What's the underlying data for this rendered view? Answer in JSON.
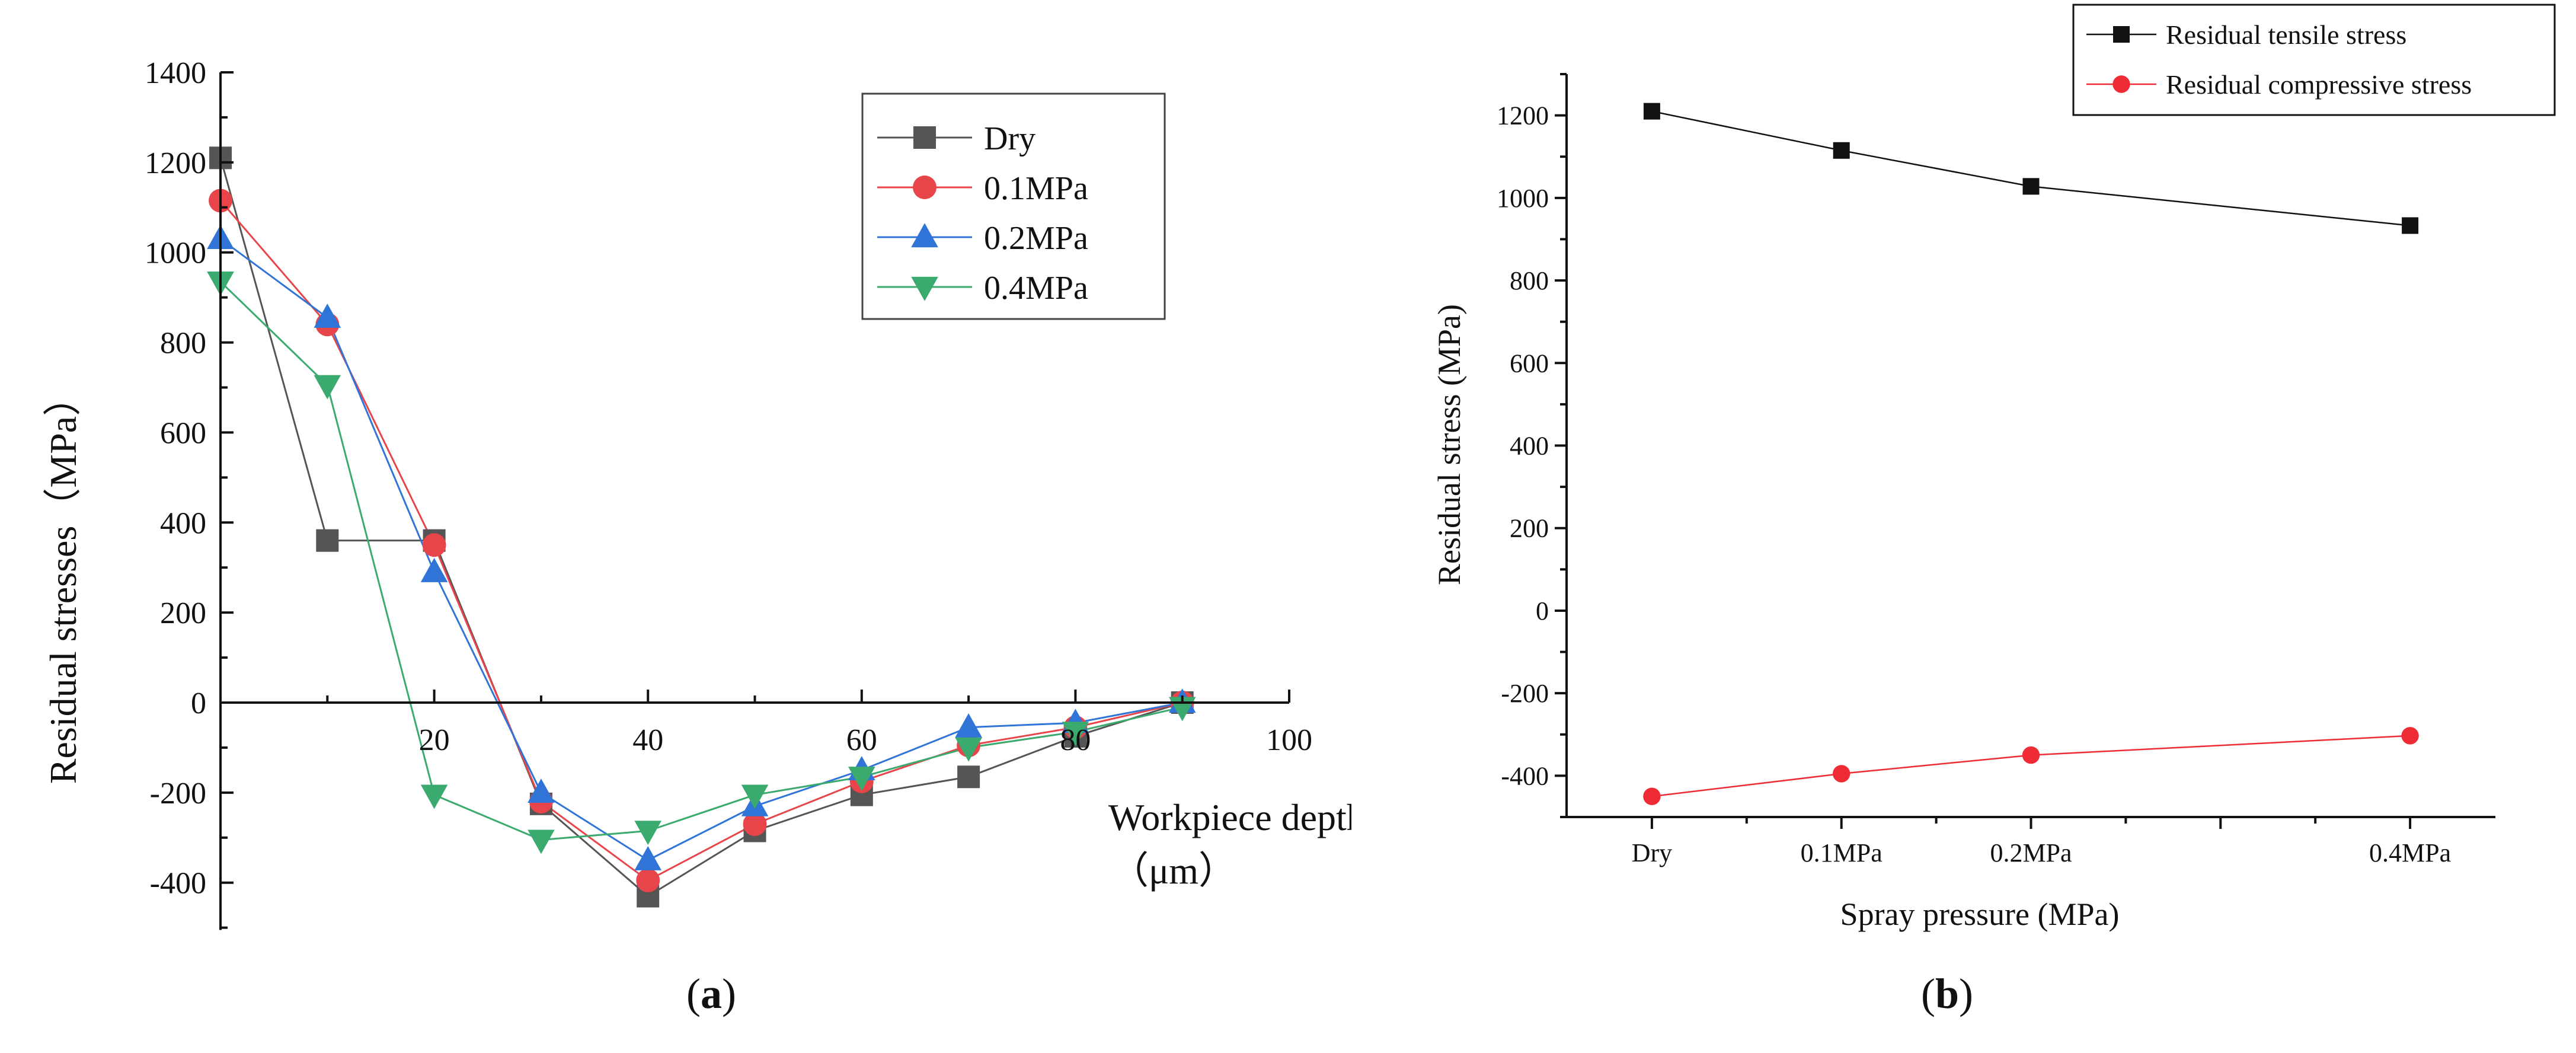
{
  "chart_data": [
    {
      "type": "line",
      "panel_label": "a",
      "xlabel": "Workpiece depth",
      "xunit": "（μm）",
      "ylabel": "Residual stresses（MPa）",
      "xlim": [
        0,
        100
      ],
      "ylim": [
        -500,
        1400
      ],
      "xticks": [
        20,
        40,
        60,
        80,
        100
      ],
      "yticks": [
        1400,
        1200,
        1000,
        800,
        600,
        400,
        200,
        0,
        -200,
        -400
      ],
      "x": [
        0,
        10,
        20,
        30,
        40,
        50,
        60,
        70,
        80,
        90
      ],
      "legend_position": "top-right",
      "series": [
        {
          "name": "Dry",
          "color": "#555555",
          "marker": "square",
          "values": [
            1210,
            360,
            360,
            -225,
            -430,
            -285,
            -205,
            -165,
            -75,
            0
          ]
        },
        {
          "name": "0.1MPa",
          "color": "#e8454a",
          "marker": "circle",
          "values": [
            1115,
            840,
            350,
            -220,
            -395,
            -270,
            -175,
            -95,
            -55,
            0
          ]
        },
        {
          "name": "0.2MPa",
          "color": "#2f74d6",
          "marker": "triangle-up",
          "values": [
            1030,
            855,
            290,
            -200,
            -350,
            -230,
            -150,
            -55,
            -45,
            0
          ]
        },
        {
          "name": "0.4MPa",
          "color": "#3aaa6e",
          "marker": "triangle-down",
          "values": [
            935,
            705,
            -205,
            -305,
            -285,
            -205,
            -165,
            -100,
            -65,
            -10
          ]
        }
      ]
    },
    {
      "type": "line",
      "panel_label": "b",
      "xlabel": "Spray pressure (MPa)",
      "ylabel": "Residual stress (MPa)",
      "categories": [
        "Dry",
        "0.1MPa",
        "0.2MPa",
        "0.4MPa"
      ],
      "x": [
        0,
        0.1,
        0.2,
        0.4
      ],
      "xlim": [
        -0.045,
        0.445
      ],
      "xticks_minor": [
        0.3
      ],
      "ylim": [
        -500,
        1300
      ],
      "yticks": [
        1200,
        1000,
        800,
        600,
        400,
        200,
        0,
        -200,
        -400
      ],
      "legend_position": "top-right",
      "series": [
        {
          "name": "Residual tensile stress",
          "color": "#111111",
          "marker": "square",
          "values": [
            1210,
            1115,
            1028,
            933
          ]
        },
        {
          "name": "Residual compressive stress",
          "color": "#ef2b35",
          "marker": "circle",
          "values": [
            -450,
            -395,
            -350,
            -303
          ]
        }
      ]
    }
  ]
}
